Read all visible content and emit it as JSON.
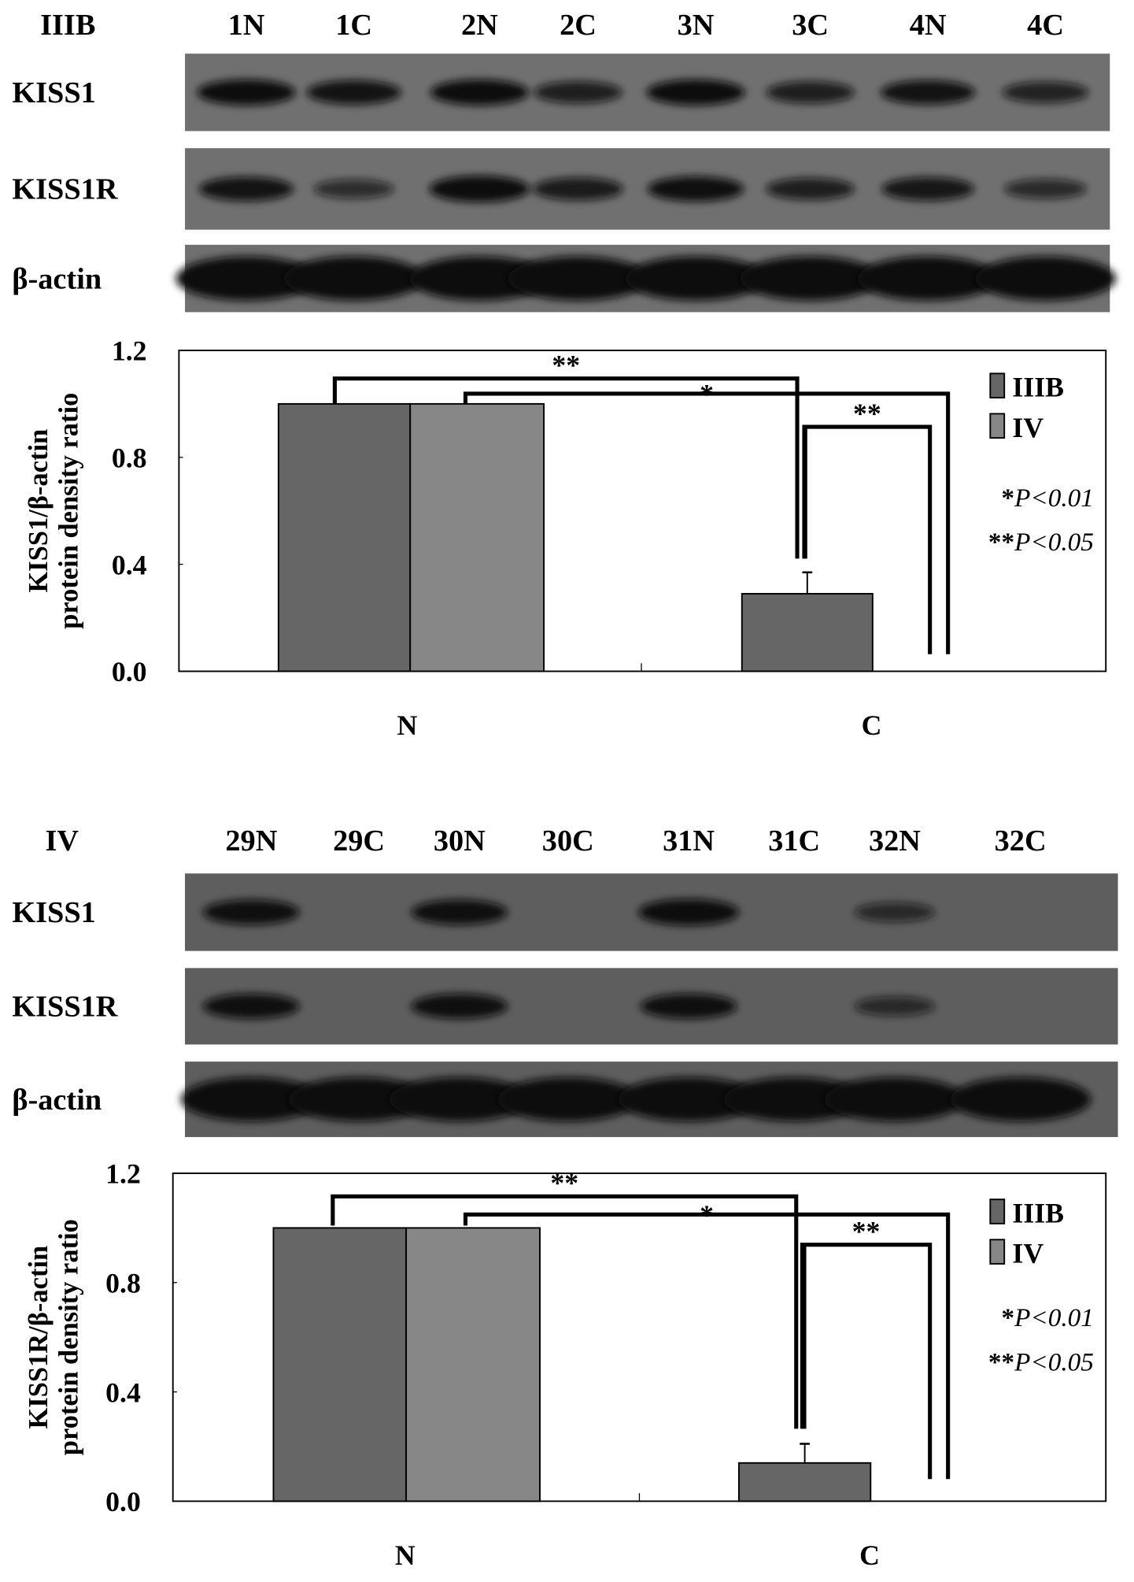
{
  "panels": [
    {
      "group_label": "IIIB",
      "lanes": [
        "1N",
        "1C",
        "2N",
        "2C",
        "3N",
        "3C",
        "4N",
        "4C"
      ],
      "blots": [
        {
          "label": "KISS1",
          "band_intensity": [
            0.95,
            0.85,
            0.95,
            0.7,
            0.95,
            0.7,
            0.85,
            0.65
          ]
        },
        {
          "label": "KISS1R",
          "band_intensity": [
            0.85,
            0.5,
            1.0,
            0.75,
            0.9,
            0.7,
            0.8,
            0.55
          ]
        },
        {
          "label": "β-actin",
          "band_intensity": [
            1,
            1,
            1,
            1,
            1,
            1,
            1,
            1
          ]
        }
      ],
      "blot_background": "#707070"
    },
    {
      "group_label": "IV",
      "lanes": [
        "29N",
        "29C",
        "30N",
        "30C",
        "31N",
        "31C",
        "32N",
        "32C"
      ],
      "blots": [
        {
          "label": "KISS1",
          "band_intensity": [
            0.9,
            0,
            0.9,
            0,
            1.0,
            0,
            0.5,
            0
          ]
        },
        {
          "label": "KISS1R",
          "band_intensity": [
            0.9,
            0,
            0.9,
            0,
            0.9,
            0,
            0.5,
            0
          ]
        },
        {
          "label": "β-actin",
          "band_intensity": [
            1,
            1,
            1,
            1,
            1,
            1,
            1,
            1
          ]
        }
      ],
      "blot_background": "#5e5e5e"
    }
  ],
  "chart_data": [
    {
      "type": "bar",
      "categories": [
        "N",
        "C"
      ],
      "ylabel": [
        "KISS1/β-actin",
        "protein density ratio"
      ],
      "ylim": [
        0,
        1.2
      ],
      "yticks": [
        "0.0",
        "0.4",
        "0.8",
        "1.2"
      ],
      "series": [
        {
          "name": "IIIB",
          "values": [
            1.0,
            0.29
          ],
          "errors": [
            0,
            0.08
          ],
          "color": "#666666"
        },
        {
          "name": "IV",
          "values": [
            1.0,
            null
          ],
          "errors": [
            0,
            0
          ],
          "color": "#878787"
        }
      ],
      "significance": [
        "**",
        "*",
        "**"
      ],
      "legend_placement": "top-right",
      "pvalue_notes": [
        {
          "stars": "*",
          "text": "P<0.01"
        },
        {
          "stars": "**",
          "text": "P<0.05"
        }
      ]
    },
    {
      "type": "bar",
      "categories": [
        "N",
        "C"
      ],
      "ylabel": [
        "KISS1R/β-actin",
        "protein density ratio"
      ],
      "ylim": [
        0,
        1.2
      ],
      "yticks": [
        "0.0",
        "0.4",
        "0.8",
        "1.2"
      ],
      "series": [
        {
          "name": "IIIB",
          "values": [
            1.0,
            0.14
          ],
          "errors": [
            0,
            0.07
          ],
          "color": "#666666"
        },
        {
          "name": "IV",
          "values": [
            1.0,
            null
          ],
          "errors": [
            0,
            0
          ],
          "color": "#878787"
        }
      ],
      "significance": [
        "**",
        "*",
        "**"
      ],
      "legend_placement": "top-right",
      "pvalue_notes": [
        {
          "stars": "*",
          "text": "P<0.01"
        },
        {
          "stars": "**",
          "text": "P<0.05"
        }
      ]
    }
  ]
}
